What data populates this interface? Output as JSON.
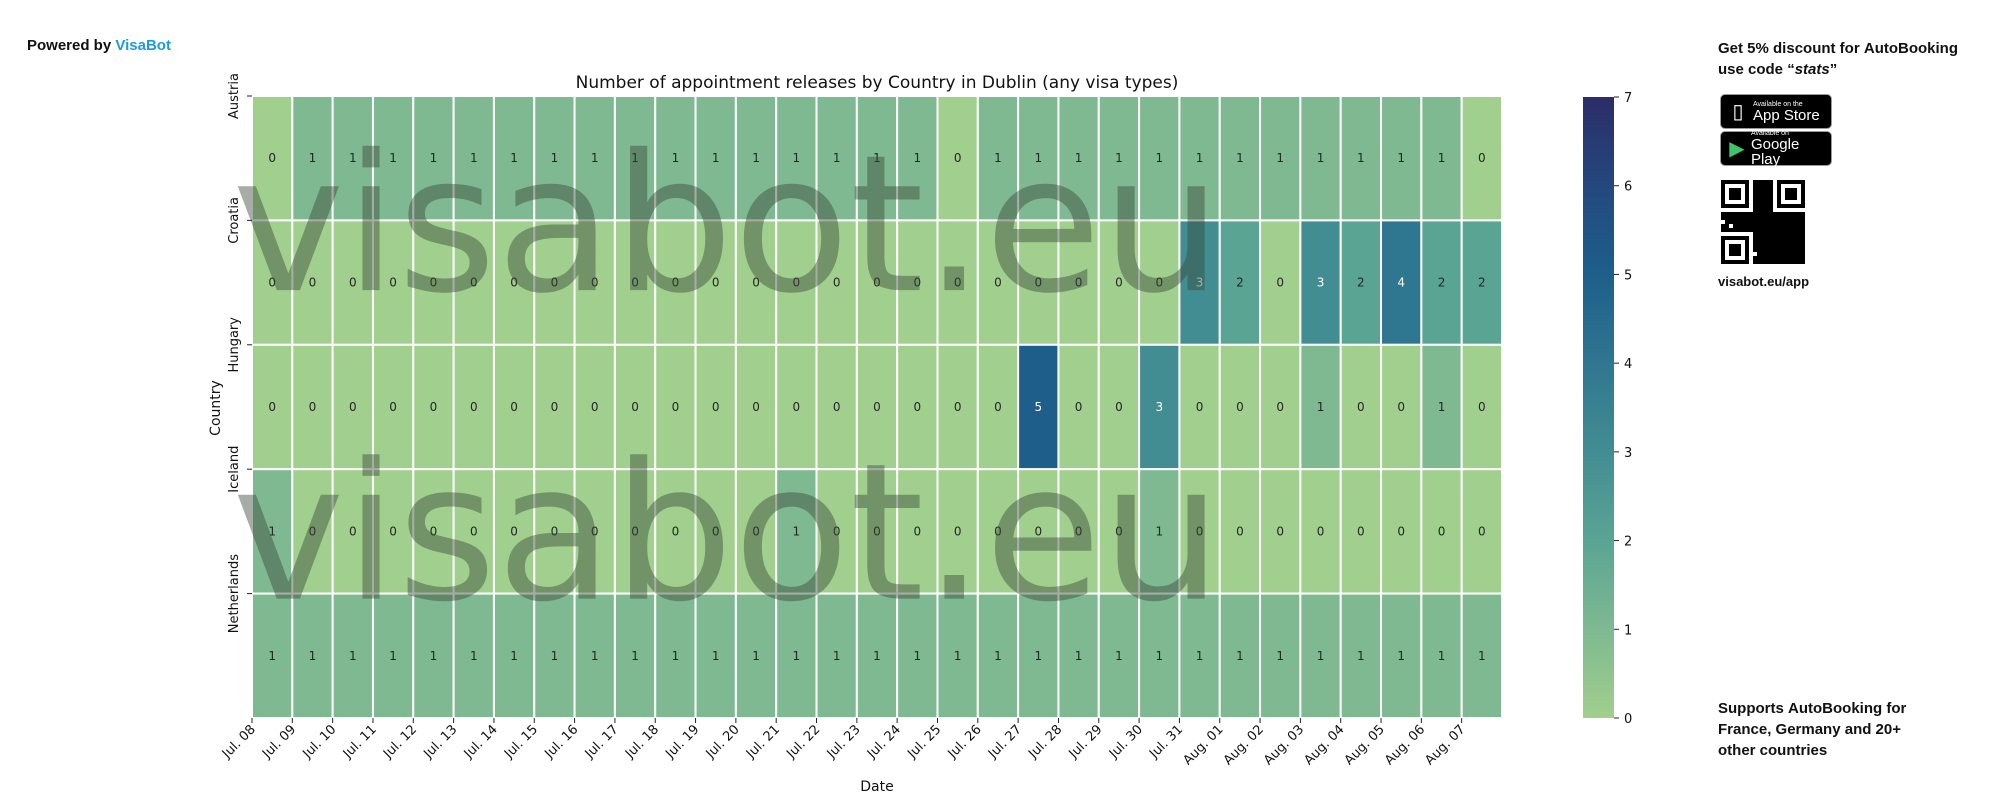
{
  "header": {
    "powered_prefix": "Powered by",
    "powered_brand": "VisaBot",
    "brand_color": "#1a9be0"
  },
  "watermark": "visabot.eu",
  "promo": {
    "line1_prefix": "Get 5% discount for",
    "line1_brand": "AutoBooking",
    "line2_prefix": "use code",
    "code": "stats",
    "appstore_small": "Available on the",
    "appstore_big": "App Store",
    "googleplay_small": "Available on",
    "googleplay_big": "Google Play",
    "qr_label": "visabot.eu/app"
  },
  "support": {
    "prefix": "Supports",
    "brand": "AutoBooking",
    "suffix": "for France, Germany and 20+ other countries"
  },
  "chart_data": {
    "type": "heatmap",
    "title": "Number of appointment releases by Country in Dublin (any visa types)",
    "xlabel": "Date",
    "ylabel": "Country",
    "x": [
      "Jul. 08",
      "Jul. 09",
      "Jul. 10",
      "Jul. 11",
      "Jul. 12",
      "Jul. 13",
      "Jul. 14",
      "Jul. 15",
      "Jul. 16",
      "Jul. 17",
      "Jul. 18",
      "Jul. 19",
      "Jul. 20",
      "Jul. 21",
      "Jul. 22",
      "Jul. 23",
      "Jul. 24",
      "Jul. 25",
      "Jul. 26",
      "Jul. 27",
      "Jul. 28",
      "Jul. 29",
      "Jul. 30",
      "Jul. 31",
      "Aug. 01",
      "Aug. 02",
      "Aug. 03",
      "Aug. 04",
      "Aug. 05",
      "Aug. 06",
      "Aug. 07"
    ],
    "y": [
      "Austria",
      "Croatia",
      "Hungary",
      "Iceland",
      "Netherlands"
    ],
    "values": [
      [
        0,
        1,
        1,
        1,
        1,
        1,
        1,
        1,
        1,
        1,
        1,
        1,
        1,
        1,
        1,
        1,
        1,
        0,
        1,
        1,
        1,
        1,
        1,
        1,
        1,
        1,
        1,
        1,
        1,
        1,
        0
      ],
      [
        0,
        0,
        0,
        0,
        0,
        0,
        0,
        0,
        0,
        0,
        0,
        0,
        0,
        0,
        0,
        0,
        0,
        0,
        0,
        0,
        0,
        0,
        0,
        3,
        2,
        0,
        3,
        2,
        4,
        2,
        2
      ],
      [
        0,
        0,
        0,
        0,
        0,
        0,
        0,
        0,
        0,
        0,
        0,
        0,
        0,
        0,
        0,
        0,
        0,
        0,
        0,
        5,
        0,
        0,
        3,
        0,
        0,
        0,
        1,
        0,
        0,
        1,
        0
      ],
      [
        1,
        0,
        0,
        0,
        0,
        0,
        0,
        0,
        0,
        0,
        0,
        0,
        0,
        1,
        0,
        0,
        0,
        0,
        0,
        0,
        0,
        0,
        1,
        0,
        0,
        0,
        0,
        0,
        0,
        0,
        0
      ],
      [
        1,
        1,
        1,
        1,
        1,
        1,
        1,
        1,
        1,
        1,
        1,
        1,
        1,
        1,
        1,
        1,
        1,
        1,
        1,
        1,
        1,
        1,
        1,
        1,
        1,
        1,
        1,
        1,
        1,
        1,
        1
      ]
    ],
    "colorbar": {
      "min": 0,
      "max": 7,
      "ticks": [
        "0",
        "1",
        "2",
        "3",
        "4",
        "5",
        "6",
        "7"
      ]
    },
    "colormap": [
      "#a1cf8d",
      "#7eb991",
      "#5aa494",
      "#428d92",
      "#2f7690",
      "#1d5f8a",
      "#24487e",
      "#2b2d67"
    ]
  }
}
